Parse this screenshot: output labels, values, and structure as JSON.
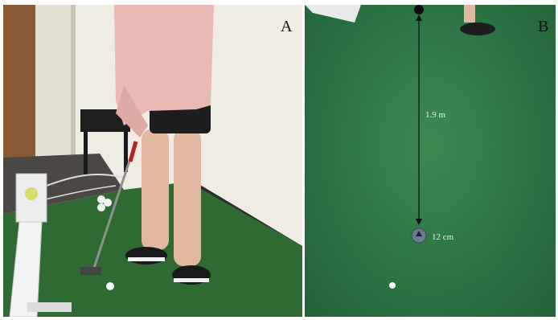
{
  "panel_a": {
    "letter": "A"
  },
  "panel_b": {
    "letter": "B",
    "distance_label": "1.9 m",
    "target_label": "12 cm"
  },
  "colors": {
    "turf_a": "#2f6a33",
    "turf_b": "#2c7444",
    "hoodie": "#e9b9b4",
    "wall": "#efece2"
  }
}
